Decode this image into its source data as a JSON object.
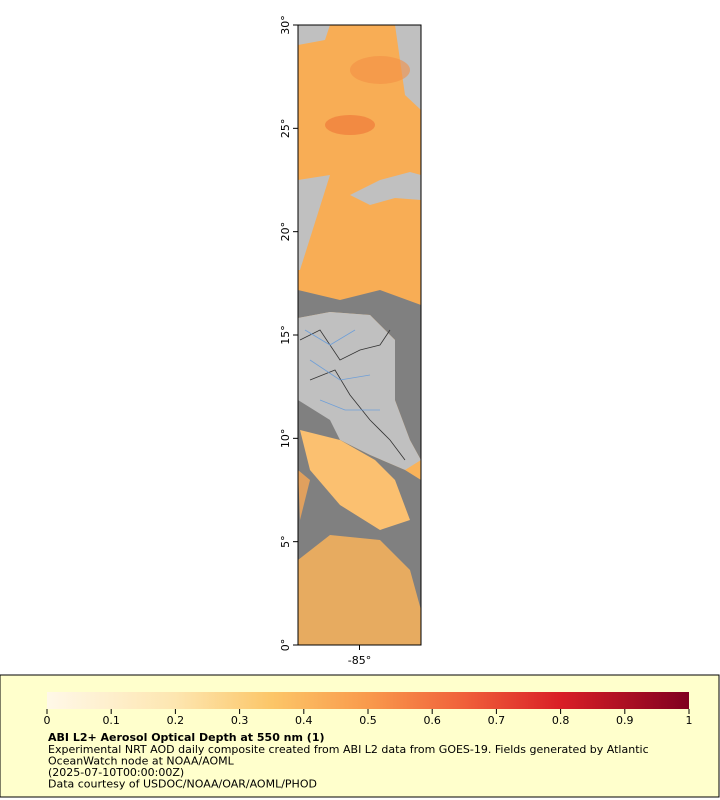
{
  "map": {
    "ylim": [
      0,
      30
    ],
    "xlim": [
      -88,
      -82
    ],
    "yticks": [
      {
        "value": 0,
        "label": "0°"
      },
      {
        "value": 5,
        "label": "5°"
      },
      {
        "value": 10,
        "label": "10°"
      },
      {
        "value": 15,
        "label": "15°"
      },
      {
        "value": 20,
        "label": "20°"
      },
      {
        "value": 25,
        "label": "25°"
      },
      {
        "value": 30,
        "label": "30°"
      }
    ],
    "xticks": [
      {
        "value": -85,
        "label": "-85°"
      }
    ]
  },
  "colorbar": {
    "lim": [
      0,
      1
    ],
    "ticks": [
      0,
      0.1,
      0.2,
      0.3,
      0.4,
      0.5,
      0.6,
      0.7,
      0.8,
      0.9,
      1
    ]
  },
  "legend": {
    "title": "ABI L2+ Aerosol Optical Depth at 550 nm (1)",
    "lines": [
      "Experimental NRT AOD daily composite created from ABI L2 data from GOES-19. Fields generated by Atlantic",
      "OceanWatch node at NOAA/AOML",
      "(2025-07-10T00:00:00Z)",
      "Data courtesy of USDOC/NOAA/OAR/AOML/PHOD"
    ]
  }
}
